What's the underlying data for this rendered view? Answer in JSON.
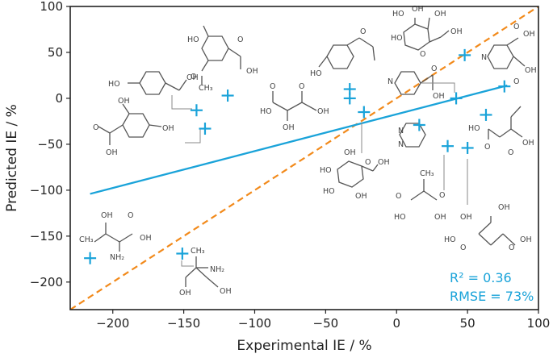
{
  "chart_data": {
    "type": "scatter",
    "title": "",
    "xlabel": "Experimental IE / %",
    "ylabel": "Predicted IE / %",
    "xlim": [
      -230,
      100
    ],
    "ylim": [
      -230,
      100
    ],
    "xticks": [
      -200,
      -150,
      -100,
      -50,
      0,
      50,
      100
    ],
    "yticks": [
      -200,
      -150,
      -100,
      -50,
      0,
      50,
      100
    ],
    "points": [
      {
        "x": -216,
        "y": -174
      },
      {
        "x": -151,
        "y": -169
      },
      {
        "x": -141,
        "y": -13
      },
      {
        "x": -135,
        "y": -33
      },
      {
        "x": -119,
        "y": 3
      },
      {
        "x": -33,
        "y": 10
      },
      {
        "x": -33,
        "y": 0
      },
      {
        "x": -23,
        "y": -15
      },
      {
        "x": 16,
        "y": -29
      },
      {
        "x": 36,
        "y": -52
      },
      {
        "x": 42,
        "y": 0
      },
      {
        "x": 48,
        "y": 47
      },
      {
        "x": 50,
        "y": -54
      },
      {
        "x": 63,
        "y": -18
      },
      {
        "x": 76,
        "y": 13
      }
    ],
    "identity_line": {
      "x": [
        -230,
        100
      ],
      "y": [
        -230,
        100
      ],
      "color": "#f28a1b",
      "style": "dashed"
    },
    "fit_line": {
      "x": [
        -216,
        78
      ],
      "y": [
        -104,
        14
      ],
      "color": "#1aa3d9"
    },
    "stats": {
      "r2": "R² = 0.36",
      "rmse": "RMSE = 73%"
    },
    "grid": false,
    "colors": {
      "points": "#1aa3d9",
      "fit": "#1aa3d9",
      "identity": "#f28a1b",
      "axes": "#222222"
    }
  }
}
